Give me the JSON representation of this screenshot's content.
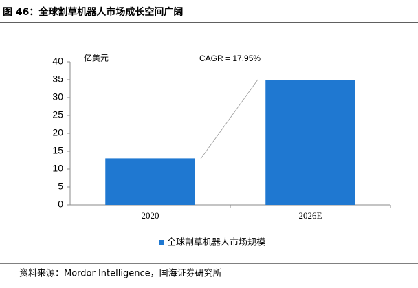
{
  "chart_data": {
    "type": "bar",
    "title": "图 46：全球割草机器人市场成长空间广阔",
    "y_label": "亿美元",
    "annotation": "CAGR = 17.95%",
    "categories": [
      "2020",
      "2026E"
    ],
    "series": [
      {
        "name": "全球割草机器人市场规模",
        "color": "#1f78d1",
        "values": [
          13,
          35
        ]
      }
    ],
    "ylim": [
      0,
      40
    ],
    "yticks": [
      0,
      5,
      10,
      15,
      20,
      25,
      30,
      35,
      40
    ],
    "legend": "bottom",
    "source": "资料来源：Mordor Intelligence，国海证券研究所"
  }
}
